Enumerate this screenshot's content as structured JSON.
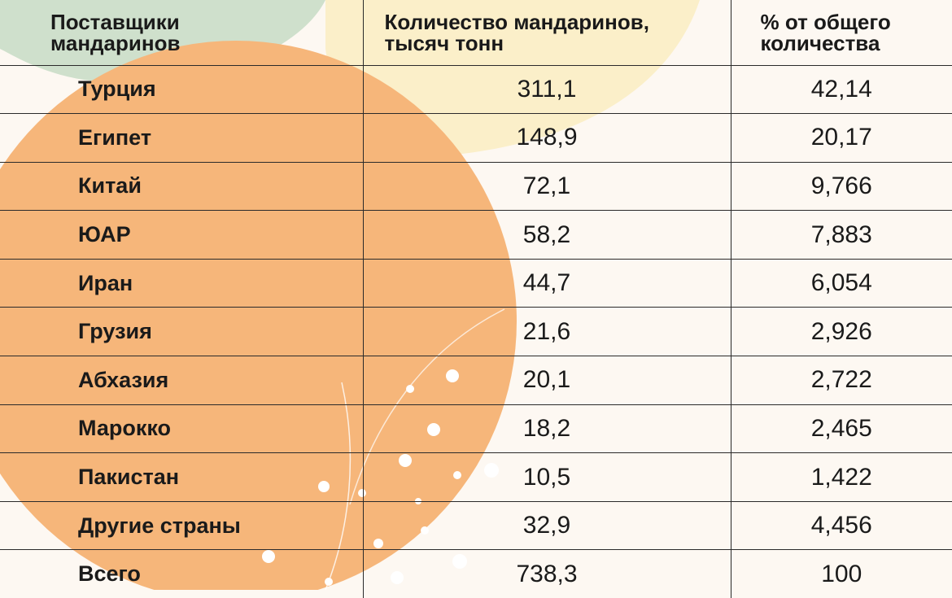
{
  "table": {
    "headers": [
      {
        "line1": "Поставщики",
        "line2": "мандаринов"
      },
      {
        "line1": "Количество мандаринов,",
        "line2": "тысяч тонн"
      },
      {
        "line1": "% от общего",
        "line2": "количества"
      }
    ],
    "rows": [
      {
        "country": "Турция",
        "amount": "311,1",
        "percent": "42,14"
      },
      {
        "country": "Египет",
        "amount": "148,9",
        "percent": "20,17"
      },
      {
        "country": "Китай",
        "amount": "72,1",
        "percent": "9,766"
      },
      {
        "country": "ЮАР",
        "amount": "58,2",
        "percent": "7,883"
      },
      {
        "country": "Иран",
        "amount": "44,7",
        "percent": "6,054"
      },
      {
        "country": "Грузия",
        "amount": "21,6",
        "percent": "2,926"
      },
      {
        "country": "Абхазия",
        "amount": "20,1",
        "percent": "2,722"
      },
      {
        "country": "Марокко",
        "amount": "18,2",
        "percent": "2,465"
      },
      {
        "country": "Пакистан",
        "amount": "10,5",
        "percent": "1,422"
      },
      {
        "country": "Другие страны",
        "amount": "32,9",
        "percent": "4,456"
      },
      {
        "country": "Всего",
        "amount": "738,3",
        "percent": "100"
      }
    ]
  },
  "colors": {
    "orange": "#f6b67a",
    "leaf_green": "#c8dbc4",
    "pale_yellow": "#fbefc9",
    "background": "#fdf8f2",
    "rule": "#2a2a2a"
  }
}
